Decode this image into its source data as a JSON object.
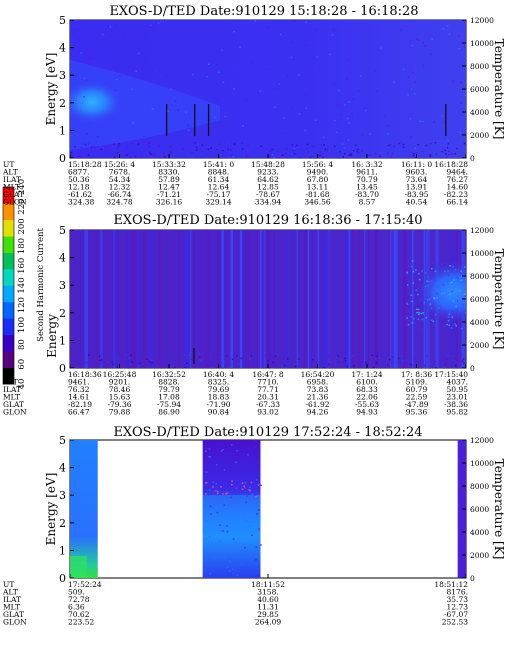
{
  "chart_data": [
    {
      "type": "heatmap",
      "title": "EXOS-D/TED   Date:910129   15:18:28 - 16:18:28",
      "ylabel": "Energy [eV]",
      "ylim": [
        0,
        5
      ],
      "yticks": [
        "0",
        "1",
        "2",
        "3",
        "4",
        "5"
      ],
      "y2label": "Temperature [K]",
      "y2lim": [
        0,
        12000
      ],
      "y2ticks": [
        "0",
        "2000",
        "4000",
        "6000",
        "8000",
        "10000",
        "12000"
      ],
      "data_start": 0.0,
      "data_end": 1.0,
      "spikes": [
        0.244,
        0.315,
        0.35,
        0.949
      ],
      "rows": [
        "UT",
        "ALT",
        "ILAT",
        "MLT",
        "GLAT",
        "GLON"
      ],
      "columns": [
        [
          "15:18:28",
          "6877.",
          "50.36",
          "12.18",
          "-61.62",
          "324.38"
        ],
        [
          "15:26: 4",
          "7678.",
          "54.34",
          "12.32",
          "-66.74",
          "324.78"
        ],
        [
          "15:33:32",
          "8330.",
          "57.89",
          "12.47",
          "-71.21",
          "326.16"
        ],
        [
          "15:41: 0",
          "8848.",
          "61.34",
          "12.64",
          "-75.17",
          "329.14"
        ],
        [
          "15:48:28",
          "9233.",
          "64.62",
          "12.85",
          "-78.67",
          "334.94"
        ],
        [
          "15:56: 4",
          "9490.",
          "67.80",
          "13.11",
          "-81.68",
          "346.56"
        ],
        [
          "16: 3:32",
          "9611.",
          "70.79",
          "13.45",
          "-83.70",
          "8.57"
        ],
        [
          "16:11: 0",
          "9603.",
          "73.64",
          "13.91",
          "-83.95",
          "40.54"
        ],
        [
          "16:18:28",
          "9464.",
          "76.27",
          "14.60",
          "-82.23",
          "66.14"
        ]
      ]
    },
    {
      "type": "heatmap",
      "title": "EXOS-D/TED   Date:910129   16:18:36 - 17:15:40",
      "ylabel": "Energy",
      "ylim": [
        0,
        5
      ],
      "yticks": [
        "0",
        "1",
        "2",
        "3",
        "4",
        "5"
      ],
      "y2label": "Temperature [K]",
      "y2lim": [
        0,
        12000
      ],
      "y2ticks": [
        "0",
        "2000",
        "4000",
        "6000",
        "8000",
        "10000",
        "12000"
      ],
      "data_start": 0.0,
      "data_end": 1.0,
      "spikes": [
        0.313
      ],
      "rows": [
        "UT",
        "ALT",
        "ILAT",
        "MLT",
        "GLAT",
        "GLON"
      ],
      "columns": [
        [
          "16:18:36",
          "9461.",
          "76.32",
          "14.61",
          "-82.19",
          "66.47"
        ],
        [
          "16:25:48",
          "9201.",
          "78.46",
          "15.63",
          "-79.36",
          "79.88"
        ],
        [
          "16:32:52",
          "8828.",
          "79.79",
          "17.08",
          "-75.94",
          "86.90"
        ],
        [
          "16:40: 4",
          "8325.",
          "79.69",
          "18.83",
          "-71.90",
          "90.84"
        ],
        [
          "16:47: 8",
          "7710.",
          "77.71",
          "20.31",
          "-67.33",
          "93.02"
        ],
        [
          "16:54:20",
          "6958.",
          "73.83",
          "21.36",
          "-61.92",
          "94.26"
        ],
        [
          "17: 1:24",
          "6100.",
          "68.33",
          "22.06",
          "-55.63",
          "94.93"
        ],
        [
          "17: 8:36",
          "5109.",
          "60.79",
          "22.59",
          "-47.89",
          "95.36"
        ],
        [
          "17:15:40",
          "4037.",
          "50.95",
          "23.01",
          "-38.36",
          "95.82"
        ]
      ]
    },
    {
      "type": "heatmap",
      "title": "EXOS-D/TED   Date:910129   17:52:24 - 18:52:24",
      "ylabel": "Energy [eV]",
      "ylim": [
        0,
        5
      ],
      "yticks": [
        "0",
        "1",
        "2",
        "3",
        "4",
        "5"
      ],
      "y2label": "Temperature [K]",
      "y2lim": [
        0,
        12000
      ],
      "y2ticks": [
        "0",
        "2000",
        "4000",
        "6000",
        "8000",
        "10000",
        "12000"
      ],
      "data_intervals": [
        [
          0.0,
          0.07
        ],
        [
          0.335,
          0.481
        ],
        [
          0.979,
          1.0
        ]
      ],
      "rows": [
        "UT",
        "ALT",
        "ILAT",
        "MLT",
        "GLAT",
        "GLON"
      ],
      "columns": [
        [
          "17:52:24",
          "509.",
          "72.78",
          "6.36",
          "70.62",
          "223.52"
        ],
        [
          "18:11:52",
          "3158.",
          "40.60",
          "11.31",
          "29.85",
          "264.09"
        ],
        [
          "18:51:12",
          "8176.",
          "35.73",
          "12.73",
          "-67.07",
          "252.53"
        ]
      ]
    }
  ],
  "colorbar": {
    "label": "Second Harmonic Current",
    "ticks": [
      "40",
      "60",
      "80",
      "100",
      "120",
      "140",
      "160",
      "180",
      "200",
      "220",
      "240"
    ],
    "colors": [
      "#000000",
      "#5a0080",
      "#3a00c8",
      "#1c2cff",
      "#0066ff",
      "#00a8ff",
      "#00d8c0",
      "#00c060",
      "#40e000",
      "#e0e000",
      "#ff9000",
      "#ff0000"
    ]
  }
}
